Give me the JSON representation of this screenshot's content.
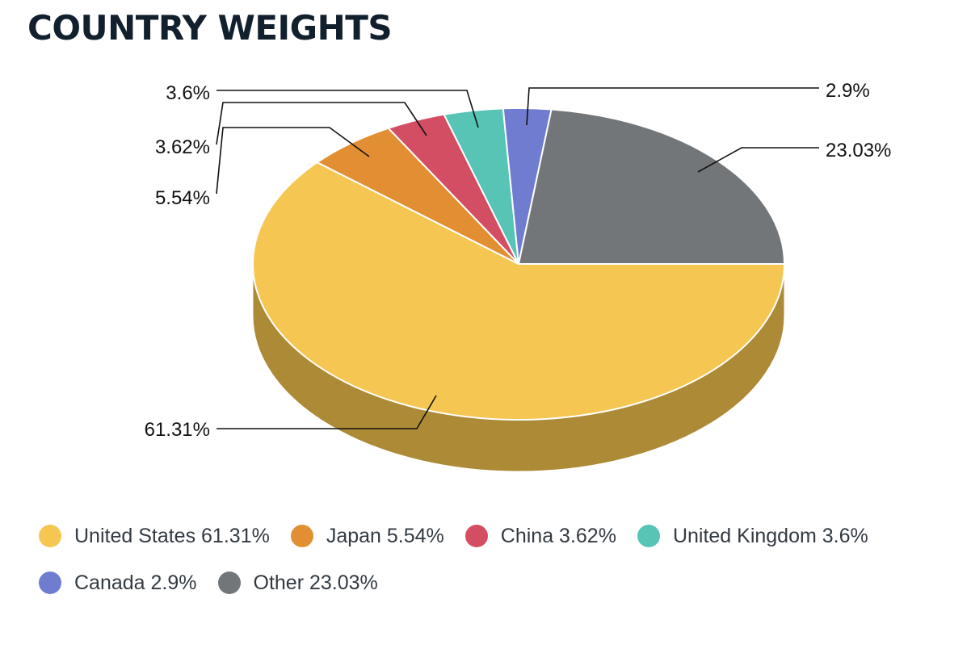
{
  "page": {
    "title": "COUNTRY WEIGHTS"
  },
  "chart_data": {
    "type": "pie",
    "title": "COUNTRY WEIGHTS",
    "categories": [
      "United States",
      "Japan",
      "China",
      "United Kingdom",
      "Canada",
      "Other"
    ],
    "values": [
      61.31,
      5.54,
      3.62,
      3.6,
      2.9,
      23.03
    ],
    "data_labels": [
      "61.31%",
      "5.54%",
      "3.62%",
      "3.6%",
      "2.9%",
      "23.03%"
    ],
    "colors": [
      "#f6c653",
      "#e28f33",
      "#d44e63",
      "#57c4b6",
      "#6f7ccf",
      "#737679"
    ],
    "side_colors": [
      "#ad8a36",
      "#9d6424",
      "#943745",
      "#3d897f",
      "#4e5790",
      "#515356"
    ],
    "legend": {
      "position": "bottom",
      "items": [
        "United States 61.31%",
        "Japan 5.54%",
        "China 3.62%",
        "United Kingdom 3.6%",
        "Canada 2.9%",
        "Other 23.03%"
      ]
    },
    "style": "3d"
  }
}
